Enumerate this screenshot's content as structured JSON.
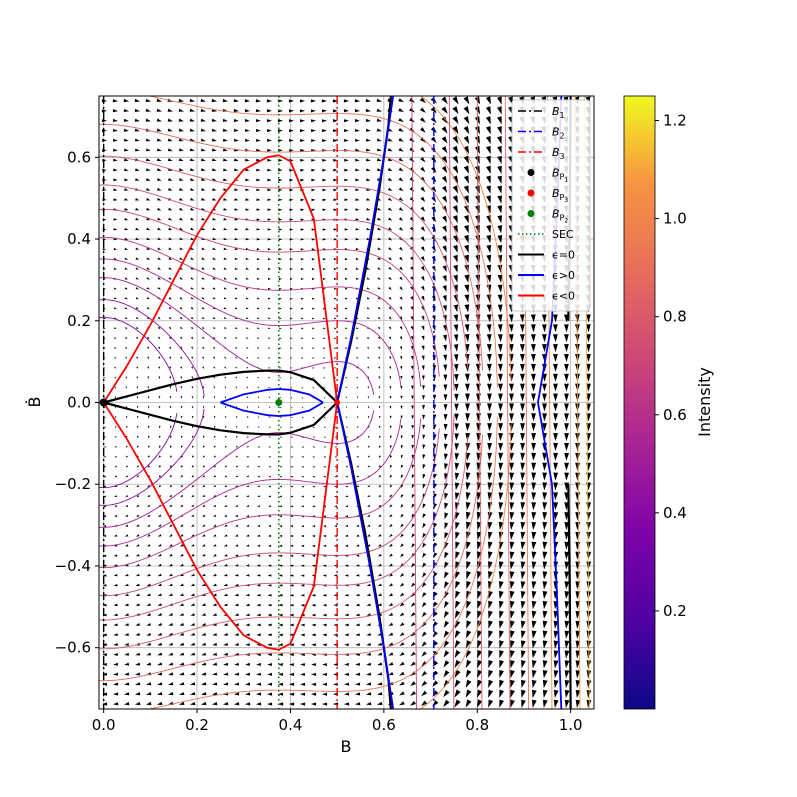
{
  "chart_data": {
    "type": "line",
    "subtype": "phase-portrait",
    "xlabel": "B",
    "ylabel": "Ḃ",
    "xlim": [
      -0.01,
      1.05
    ],
    "ylim": [
      -0.75,
      0.75
    ],
    "grid": true,
    "x_ticks": [
      0.0,
      0.2,
      0.4,
      0.6,
      0.8,
      1.0
    ],
    "x_tick_labels": [
      "0.0",
      "0.2",
      "0.4",
      "0.6",
      "0.8",
      "1.0"
    ],
    "y_ticks": [
      -0.6,
      -0.4,
      -0.2,
      0.0,
      0.2,
      0.4,
      0.6
    ],
    "y_tick_labels": [
      "−0.6",
      "−0.4",
      "−0.2",
      "0.0",
      "0.2",
      "0.4",
      "0.6"
    ],
    "equilibria": {
      "B1": 0.0,
      "B2": 0.707,
      "B3": 0.5,
      "B_P1": [
        0.0,
        0.0
      ],
      "B_P3": [
        0.5,
        0.0
      ],
      "B_P2": [
        0.375,
        0.0
      ],
      "SEC": 0.375
    },
    "separatrix_left": {
      "name": "ε=0",
      "x": [
        0.0,
        0.05,
        0.1,
        0.15,
        0.2,
        0.25,
        0.3,
        0.35,
        0.375,
        0.4,
        0.45,
        0.5
      ],
      "y": [
        0.0,
        0.015,
        0.03,
        0.045,
        0.058,
        0.068,
        0.075,
        0.078,
        0.078,
        0.074,
        0.055,
        0.0
      ]
    },
    "separatrix_right": {
      "name": "ε=0",
      "x": [
        0.5,
        0.53,
        0.56,
        0.59,
        0.6,
        0.61,
        0.615
      ],
      "y": [
        0.0,
        0.15,
        0.32,
        0.52,
        0.6,
        0.68,
        0.75
      ]
    },
    "separatrix_far": {
      "name": "ε=0",
      "x": [
        0.995,
        0.998,
        1.0
      ],
      "y": [
        0.2,
        0.45,
        0.75
      ]
    },
    "orbit_blue_left": {
      "name": "ε>0",
      "x": [
        0.25,
        0.3,
        0.35,
        0.375,
        0.4,
        0.44,
        0.47
      ],
      "y": [
        0.0,
        0.02,
        0.031,
        0.033,
        0.031,
        0.02,
        0.0
      ]
    },
    "orbit_blue_right": {
      "name": "ε>0",
      "x": [
        0.5,
        0.53,
        0.57,
        0.6,
        0.62
      ],
      "y": [
        0.0,
        0.16,
        0.4,
        0.6,
        0.75
      ]
    },
    "orbit_blue_far": {
      "name": "ε>0",
      "x": [
        0.93,
        0.96,
        0.97,
        0.98
      ],
      "y": [
        0.0,
        0.2,
        0.45,
        0.75
      ]
    },
    "orbit_red": {
      "name": "ε<0",
      "x": [
        0.0,
        0.05,
        0.1,
        0.15,
        0.2,
        0.25,
        0.3,
        0.35,
        0.375,
        0.4,
        0.45,
        0.5
      ],
      "y": [
        0.0,
        0.09,
        0.19,
        0.3,
        0.41,
        0.5,
        0.57,
        0.6,
        0.605,
        0.59,
        0.45,
        0.0
      ]
    },
    "colorbar": {
      "label": "Intensity",
      "range": [
        0.0,
        1.25
      ],
      "ticks": [
        0.2,
        0.4,
        0.6,
        0.8,
        1.0,
        1.2
      ],
      "tick_labels": [
        "0.2",
        "0.4",
        "0.6",
        "0.8",
        "1.0",
        "1.2"
      ],
      "colormap": "plasma"
    },
    "legend": {
      "placement": "top-right",
      "entries": [
        {
          "name": "B",
          "sub": "1",
          "style": "dashdot",
          "color": "#000000"
        },
        {
          "name": "B",
          "sub": "2",
          "style": "dashdot",
          "color": "#0000ff"
        },
        {
          "name": "B",
          "sub": "3",
          "style": "dashdot",
          "color": "#ff0000"
        },
        {
          "name": "B",
          "sub": "P",
          "subsub": "1",
          "style": "dot",
          "color": "#000000"
        },
        {
          "name": "B",
          "sub": "P",
          "subsub": "3",
          "style": "dot",
          "color": "#ff0000"
        },
        {
          "name": "B",
          "sub": "P",
          "subsub": "2",
          "style": "dot",
          "color": "#008000"
        },
        {
          "name": "SEC",
          "style": "dotted",
          "color": "#008000"
        },
        {
          "name": "ϵ=0",
          "style": "solid",
          "color": "#000000"
        },
        {
          "name": "ϵ>0",
          "style": "solid",
          "color": "#0000ff"
        },
        {
          "name": "ϵ<0",
          "style": "solid",
          "color": "#ff0000"
        }
      ]
    }
  }
}
